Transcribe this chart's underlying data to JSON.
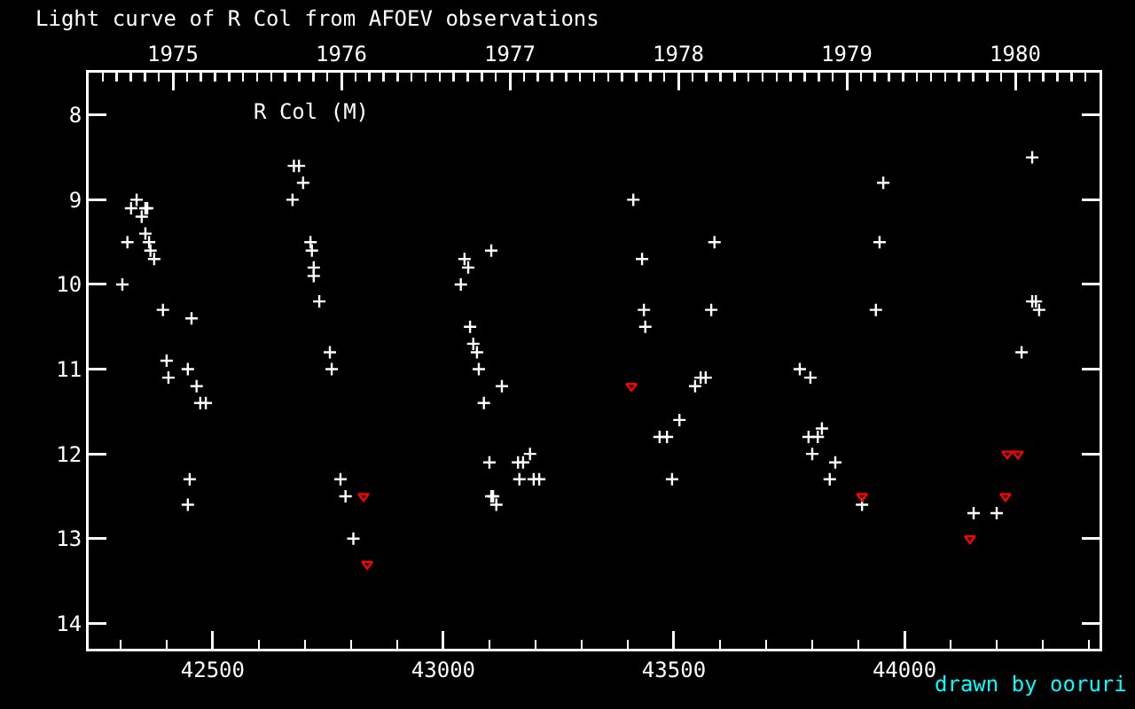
{
  "chart_data": {
    "type": "scatter",
    "title": "Light curve of R Col from AFOEV observations",
    "annotations": [
      {
        "text": "R Col (M)"
      },
      {
        "text": "drawn by ooruri"
      }
    ],
    "xlim": [
      42231,
      44423
    ],
    "xticks": [
      42500,
      43000,
      43500,
      44000
    ],
    "x2lim": [
      1974.5,
      1980.5
    ],
    "x2ticks": [
      1975,
      1976,
      1977,
      1978,
      1979,
      1980
    ],
    "ylim": [
      14.3,
      7.5
    ],
    "yticks": [
      8,
      9,
      10,
      11,
      12,
      13,
      14
    ],
    "series": [
      {
        "color": "#ffffff",
        "marker": "cross",
        "x": [
          42304,
          42315,
          42323,
          42335,
          42354,
          42358,
          42346,
          42354,
          42362,
          42365,
          42373,
          42392,
          42454,
          42400,
          42404,
          42446,
          42465,
          42473,
          42485,
          42450,
          42446,
          42676,
          42687,
          42696,
          42673,
          42712,
          42715,
          42719,
          42719,
          42731,
          42754,
          42758,
          42777,
          42788,
          42805,
          43038,
          43046,
          43054,
          43104,
          43058,
          43065,
          43073,
          43077,
          43127,
          43088,
          43100,
          43104,
          43108,
          43115,
          43162,
          43173,
          43188,
          43165,
          43196,
          43208,
          43412,
          43431,
          43435,
          43438,
          43588,
          43581,
          43469,
          43485,
          43512,
          43496,
          43546,
          43558,
          43569,
          43954,
          43946,
          43938,
          43773,
          43796,
          43792,
          43812,
          43821,
          43800,
          43850,
          43838,
          43908,
          44277,
          44277,
          44285,
          44292,
          44254,
          44150,
          44200
        ],
        "values": [
          10.0,
          9.5,
          9.1,
          9.0,
          9.1,
          9.1,
          9.2,
          9.4,
          9.5,
          9.6,
          9.7,
          10.3,
          10.4,
          10.9,
          11.1,
          11.0,
          11.2,
          11.4,
          11.4,
          12.3,
          12.6,
          8.6,
          8.6,
          8.8,
          9.0,
          9.5,
          9.6,
          9.8,
          9.9,
          10.2,
          10.8,
          11.0,
          12.3,
          12.5,
          13.0,
          10.0,
          9.7,
          9.8,
          9.6,
          10.5,
          10.7,
          10.8,
          11.0,
          11.2,
          11.4,
          12.1,
          12.5,
          12.5,
          12.6,
          12.1,
          12.1,
          12.0,
          12.3,
          12.3,
          12.3,
          9.0,
          9.7,
          10.3,
          10.5,
          9.5,
          10.3,
          11.8,
          11.8,
          11.6,
          12.3,
          11.2,
          11.1,
          11.1,
          8.8,
          9.5,
          10.3,
          11.0,
          11.1,
          11.8,
          11.8,
          11.7,
          12.0,
          12.1,
          12.3,
          12.6,
          8.5,
          10.2,
          10.2,
          10.3,
          10.8,
          12.7,
          12.7
        ]
      },
      {
        "color": "#ff0000",
        "marker": "triangle",
        "x": [
          42827,
          42835,
          43408,
          43908,
          44142,
          44219,
          44223,
          44246
        ],
        "values": [
          12.5,
          13.3,
          11.2,
          12.5,
          13.0,
          12.5,
          12.0,
          12.0
        ]
      }
    ]
  }
}
